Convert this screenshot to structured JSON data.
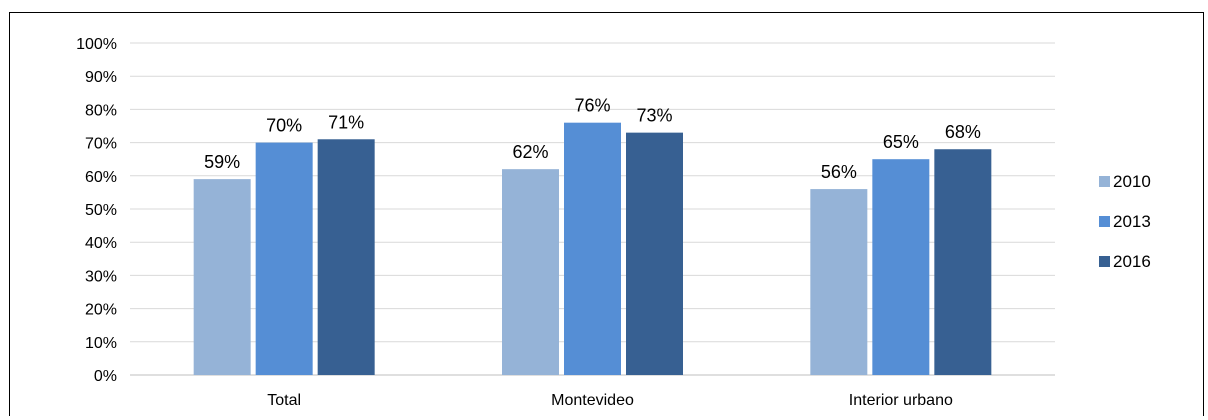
{
  "chart_data": {
    "type": "bar",
    "title": "",
    "xlabel": "",
    "ylabel": "",
    "categories": [
      "Total",
      "Montevideo",
      "Interior urbano"
    ],
    "series": [
      {
        "name": "2010",
        "values": [
          0.59,
          0.62,
          0.56
        ],
        "labels": [
          "59%",
          "62%",
          "56%"
        ],
        "color": "#95B3D7"
      },
      {
        "name": "2013",
        "values": [
          0.7,
          0.76,
          0.65
        ],
        "labels": [
          "70%",
          "76%",
          "65%"
        ],
        "color": "#558ED5"
      },
      {
        "name": "2016",
        "values": [
          0.71,
          0.73,
          0.68
        ],
        "labels": [
          "71%",
          "73%",
          "68%"
        ],
        "color": "#376092"
      }
    ],
    "y_ticks": [
      "0%",
      "10%",
      "20%",
      "30%",
      "40%",
      "50%",
      "60%",
      "70%",
      "80%",
      "90%",
      "100%"
    ],
    "ylim": [
      0,
      1
    ],
    "grid": true,
    "legend_position": "right"
  }
}
